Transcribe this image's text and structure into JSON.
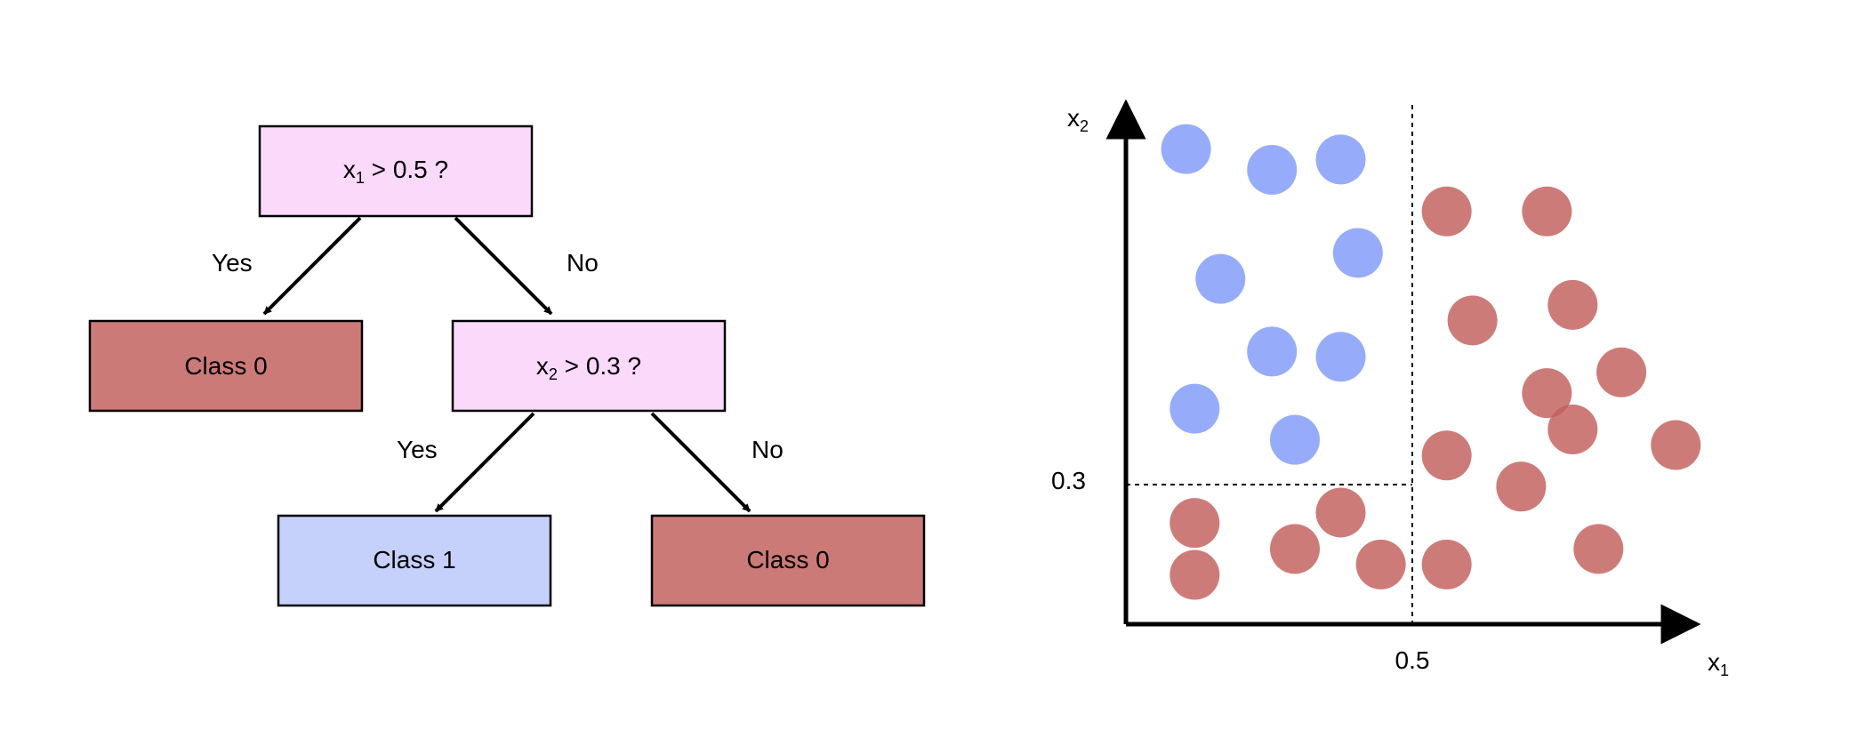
{
  "tree": {
    "nodes": [
      {
        "id": "root",
        "kind": "decision",
        "var": "x",
        "sub": "1",
        "cond": " > 0.5 ?"
      },
      {
        "id": "leaf-left",
        "kind": "class0",
        "label": "Class 0"
      },
      {
        "id": "inner",
        "kind": "decision",
        "var": "x",
        "sub": "2",
        "cond": " > 0.3 ?"
      },
      {
        "id": "leaf-class1",
        "kind": "class1",
        "label": "Class 1"
      },
      {
        "id": "leaf-right",
        "kind": "class0",
        "label": "Class 0"
      }
    ],
    "edges": [
      {
        "from": "root",
        "to": "leaf-left",
        "label": "Yes"
      },
      {
        "from": "root",
        "to": "inner",
        "label": "No"
      },
      {
        "from": "inner",
        "to": "leaf-class1",
        "label": "Yes"
      },
      {
        "from": "inner",
        "to": "leaf-right",
        "label": "No"
      }
    ]
  },
  "scatter": {
    "x_axis": {
      "var": "x",
      "sub": "1",
      "split_tick": "0.5"
    },
    "y_axis": {
      "var": "x",
      "sub": "2",
      "split_tick": "0.3"
    },
    "split_x": 0.5,
    "split_y": 0.3,
    "class1_points": [
      [
        0.105,
        0.915
      ],
      [
        0.255,
        0.875
      ],
      [
        0.375,
        0.895
      ],
      [
        0.405,
        0.715
      ],
      [
        0.165,
        0.665
      ],
      [
        0.255,
        0.525
      ],
      [
        0.375,
        0.515
      ],
      [
        0.12,
        0.415
      ],
      [
        0.295,
        0.355
      ]
    ],
    "class0_points": [
      [
        0.56,
        0.795
      ],
      [
        0.735,
        0.795
      ],
      [
        0.605,
        0.585
      ],
      [
        0.78,
        0.615
      ],
      [
        0.865,
        0.485
      ],
      [
        0.735,
        0.445
      ],
      [
        0.78,
        0.375
      ],
      [
        0.56,
        0.325
      ],
      [
        0.69,
        0.265
      ],
      [
        0.96,
        0.345
      ],
      [
        0.12,
        0.195
      ],
      [
        0.12,
        0.095
      ],
      [
        0.295,
        0.145
      ],
      [
        0.375,
        0.215
      ],
      [
        0.445,
        0.115
      ],
      [
        0.56,
        0.115
      ],
      [
        0.825,
        0.145
      ]
    ]
  },
  "colors": {
    "decision_fill": "#fbd9fb",
    "class0_fill": "#cc7a78",
    "class1_fill": "#c5d0fb",
    "class0_point": "#c25e5c",
    "class1_point": "#7f9afa"
  }
}
